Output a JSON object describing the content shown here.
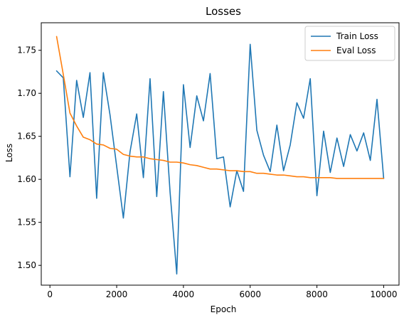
{
  "chart_data": {
    "type": "line",
    "title": "Losses",
    "xlabel": "Epoch",
    "ylabel": "Loss",
    "xlim": [
      -260,
      10460
    ],
    "ylim": [
      1.477,
      1.782
    ],
    "xticks": [
      0,
      2000,
      4000,
      6000,
      8000,
      10000
    ],
    "xtick_labels": [
      "0",
      "2000",
      "4000",
      "6000",
      "8000",
      "10000"
    ],
    "yticks": [
      1.5,
      1.55,
      1.6,
      1.65,
      1.7,
      1.75
    ],
    "ytick_labels": [
      "1.50",
      "1.55",
      "1.60",
      "1.65",
      "1.70",
      "1.75"
    ],
    "grid": false,
    "legend_position": "top-right",
    "series": [
      {
        "name": "Train Loss",
        "color": "#1f77b4",
        "x": [
          200,
          400,
          600,
          800,
          1000,
          1200,
          1400,
          1600,
          1800,
          2000,
          2200,
          2400,
          2600,
          2800,
          3000,
          3200,
          3400,
          3600,
          3800,
          4000,
          4200,
          4400,
          4600,
          4800,
          5000,
          5200,
          5400,
          5600,
          5800,
          6000,
          6200,
          6400,
          6600,
          6800,
          7000,
          7200,
          7400,
          7600,
          7800,
          8000,
          8200,
          8400,
          8600,
          8800,
          9000,
          9200,
          9400,
          9600,
          9800,
          10000
        ],
        "y": [
          1.726,
          1.718,
          1.603,
          1.715,
          1.672,
          1.724,
          1.578,
          1.724,
          1.675,
          1.615,
          1.555,
          1.632,
          1.676,
          1.602,
          1.717,
          1.58,
          1.702,
          1.585,
          1.49,
          1.71,
          1.637,
          1.697,
          1.668,
          1.723,
          1.624,
          1.626,
          1.568,
          1.61,
          1.586,
          1.757,
          1.657,
          1.628,
          1.609,
          1.663,
          1.61,
          1.64,
          1.689,
          1.671,
          1.717,
          1.581,
          1.656,
          1.608,
          1.648,
          1.615,
          1.652,
          1.633,
          1.654,
          1.622,
          1.693,
          1.601
        ]
      },
      {
        "name": "Eval Loss",
        "color": "#ff7f0e",
        "x": [
          200,
          400,
          600,
          800,
          1000,
          1200,
          1400,
          1600,
          1800,
          2000,
          2200,
          2400,
          2600,
          2800,
          3000,
          3200,
          3400,
          3600,
          3800,
          4000,
          4200,
          4400,
          4600,
          4800,
          5000,
          5200,
          5400,
          5600,
          5800,
          6000,
          6200,
          6400,
          6600,
          6800,
          7000,
          7200,
          7400,
          7600,
          7800,
          8000,
          8200,
          8400,
          8600,
          8800,
          9000,
          9200,
          9400,
          9600,
          9800,
          10000
        ],
        "y": [
          1.766,
          1.722,
          1.677,
          1.662,
          1.649,
          1.646,
          1.641,
          1.64,
          1.636,
          1.635,
          1.629,
          1.627,
          1.626,
          1.626,
          1.624,
          1.623,
          1.622,
          1.62,
          1.62,
          1.619,
          1.617,
          1.616,
          1.614,
          1.612,
          1.612,
          1.611,
          1.61,
          1.61,
          1.609,
          1.609,
          1.607,
          1.607,
          1.606,
          1.605,
          1.605,
          1.604,
          1.603,
          1.603,
          1.602,
          1.602,
          1.602,
          1.602,
          1.601,
          1.601,
          1.601,
          1.601,
          1.601,
          1.601,
          1.601,
          1.601
        ]
      }
    ]
  }
}
